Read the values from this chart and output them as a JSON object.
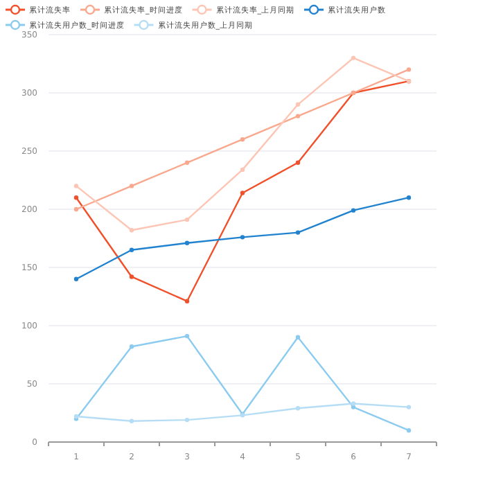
{
  "chart_data": {
    "type": "line",
    "categories": [
      "1",
      "2",
      "3",
      "4",
      "5",
      "6",
      "7"
    ],
    "ylim": [
      0,
      350
    ],
    "yticks": [
      0,
      50,
      100,
      150,
      200,
      250,
      300,
      350
    ],
    "grid": "y",
    "legend": "top",
    "marker": "circle",
    "series": [
      {
        "name": "累计流失率",
        "color": "#f0502a",
        "values": [
          210,
          142,
          121,
          214,
          240,
          300,
          310
        ]
      },
      {
        "name": "累计流失率_时间进度",
        "color": "#f9a88e",
        "values": [
          200,
          220,
          240,
          260,
          280,
          300,
          320
        ]
      },
      {
        "name": "累计流失率_上月同期",
        "color": "#fcc5b4",
        "values": [
          220,
          182,
          191,
          234,
          290,
          330,
          310
        ]
      },
      {
        "name": "累计流失用户数",
        "color": "#2183cf",
        "values": [
          140,
          165,
          171,
          176,
          180,
          199,
          210
        ]
      },
      {
        "name": "累计流失用户数_时间进度",
        "color": "#8ccbf0",
        "values": [
          20,
          82,
          91,
          24,
          90,
          30,
          10
        ]
      },
      {
        "name": "累计流失用户数_上月同期",
        "color": "#b5ddf5",
        "values": [
          22,
          18,
          19,
          23,
          29,
          33,
          30
        ]
      }
    ]
  }
}
